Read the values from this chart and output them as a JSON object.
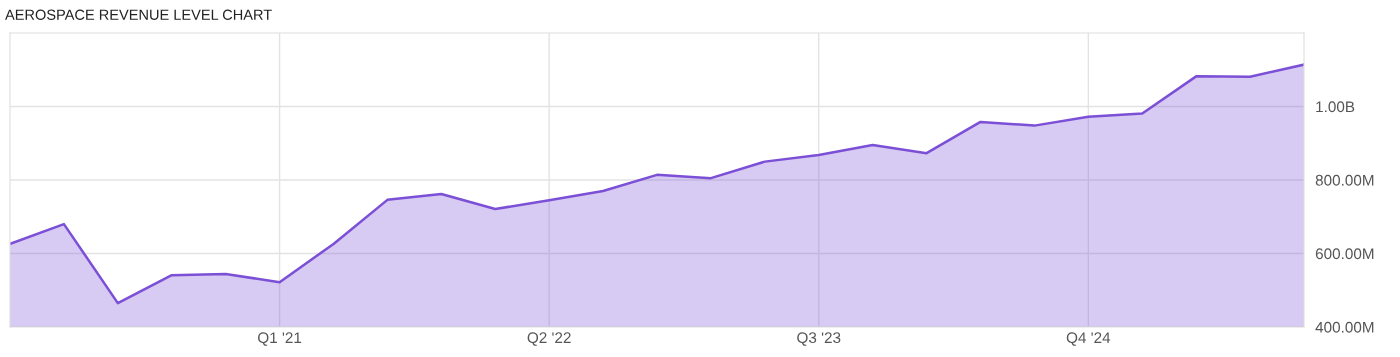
{
  "chart_data": {
    "type": "area",
    "title": "AEROSPACE REVENUE LEVEL CHART",
    "categories": [
      null,
      null,
      null,
      null,
      null,
      "Q1 '21",
      null,
      null,
      null,
      null,
      "Q2 '22",
      null,
      null,
      null,
      null,
      "Q3 '23",
      null,
      null,
      null,
      null,
      "Q4 '24",
      null,
      null,
      null,
      null
    ],
    "series": [
      {
        "color": "#7b4fd6",
        "values": [
          626000000,
          680000000,
          465000000,
          541000000,
          544000000,
          522000000,
          626000000,
          746000000,
          762000000,
          721000000,
          745000000,
          770000000,
          814000000,
          805000000,
          850000000,
          868000000,
          895000000,
          873000000,
          958000000,
          948000000,
          972000000,
          981000000,
          1082000000,
          1081000000,
          1114000000
        ]
      }
    ],
    "ylim": [
      400000000,
      1200000000
    ],
    "yticks": [
      {
        "value": 400000000,
        "label": "400.00M"
      },
      {
        "value": 600000000,
        "label": "600.00M"
      },
      {
        "value": 800000000,
        "label": "800.00M"
      },
      {
        "value": 1000000000,
        "label": "1.00B"
      }
    ],
    "grid": true
  }
}
